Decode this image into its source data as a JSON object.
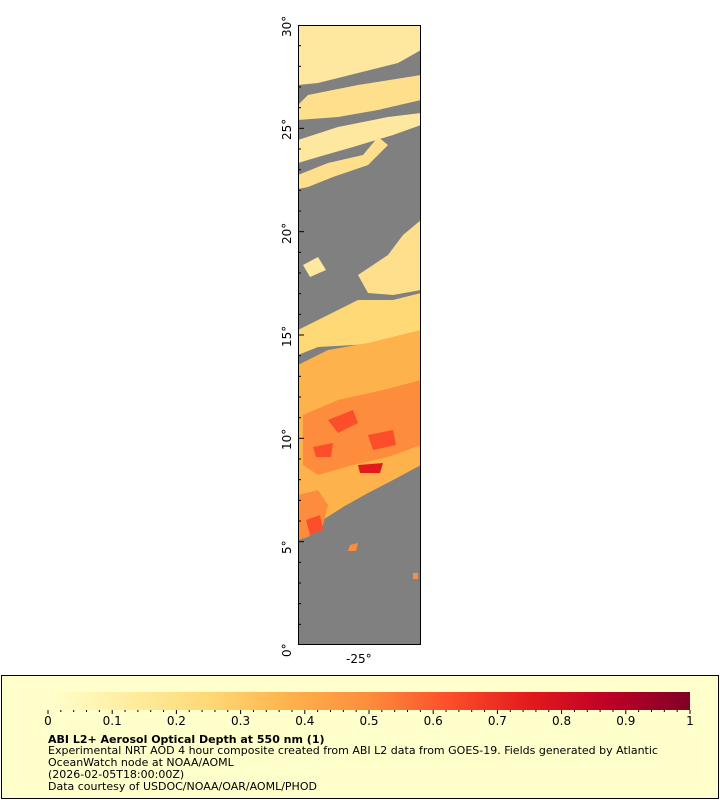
{
  "map": {
    "latitude_ticks": [
      "0°",
      "5°",
      "10°",
      "15°",
      "20°",
      "25°",
      "30°"
    ],
    "latitude_values": [
      0,
      5,
      10,
      15,
      20,
      25,
      30
    ],
    "longitude_ticks": [
      "-25°"
    ],
    "longitude_values": [
      -25
    ],
    "lat_range": [
      0,
      30
    ],
    "no_data_color": "#808080"
  },
  "legend": {
    "title": "ABI L2+ Aerosol Optical Depth at 550 nm (1)",
    "line1": "Experimental NRT AOD 4 hour composite created from ABI L2 data from GOES-19. Fields generated by Atlantic",
    "line2": "OceanWatch node at NOAA/AOML",
    "line3": "(2026-02-05T18:00:00Z)",
    "line4": "Data courtesy of USDOC/NOAA/OAR/AOML/PHOD",
    "background": "#ffffcc"
  },
  "colorbar": {
    "min": 0,
    "max": 1,
    "tick_labels": [
      "0",
      "0.1",
      "0.2",
      "0.3",
      "0.4",
      "0.5",
      "0.6",
      "0.7",
      "0.8",
      "0.9",
      "1"
    ],
    "tick_values": [
      0,
      0.1,
      0.2,
      0.3,
      0.4,
      0.5,
      0.6,
      0.7,
      0.8,
      0.9,
      1
    ],
    "colors": [
      "#ffffcc",
      "#ffeda0",
      "#fed976",
      "#feb24c",
      "#fd8d3c",
      "#fc4e2a",
      "#e31a1c",
      "#bd0026",
      "#800026"
    ]
  }
}
